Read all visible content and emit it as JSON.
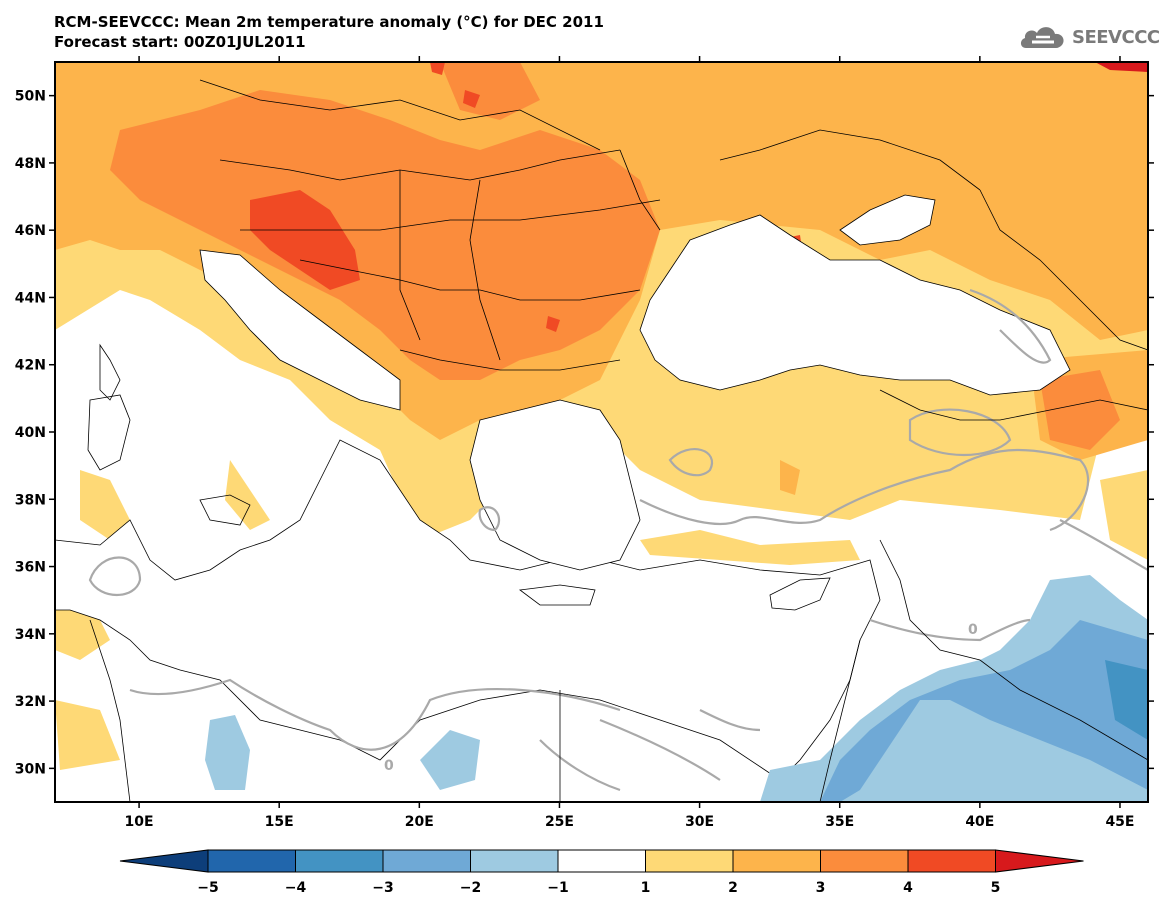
{
  "title": {
    "line1": "RCM-SEEVCCC: Mean 2m temperature anomaly (°C) for DEC 2011",
    "line2": "Forecast start: 00Z01JUL2011"
  },
  "logo": {
    "text": "SEEVCCC",
    "icon": "cloud-logo-icon",
    "color": "#7a7a7a"
  },
  "map": {
    "lat_labels": [
      "50N",
      "48N",
      "46N",
      "44N",
      "42N",
      "40N",
      "38N",
      "36N",
      "34N",
      "32N",
      "30N"
    ],
    "lat_values": [
      50,
      48,
      46,
      44,
      42,
      40,
      38,
      36,
      34,
      32,
      30
    ],
    "lon_labels": [
      "10E",
      "15E",
      "20E",
      "25E",
      "30E",
      "35E",
      "40E",
      "45E"
    ],
    "lon_values": [
      10,
      15,
      20,
      25,
      30,
      35,
      40,
      45
    ],
    "contour_zero_label": "0",
    "colors": {
      "neg5": "#0d3e7a",
      "neg4": "#2166ac",
      "neg3": "#4393c3",
      "neg2": "#6fa9d6",
      "neg1": "#9ecae1",
      "zero": "#ffffff",
      "pos1": "#fed976",
      "pos2": "#fdb44b",
      "pos3": "#fb8c3c",
      "pos4": "#f04a24",
      "pos5": "#d7191c",
      "contour": "#a9a9a9"
    }
  },
  "colorbar": {
    "ticks": [
      "−5",
      "−4",
      "−3",
      "−2",
      "−1",
      "1",
      "2",
      "3",
      "4",
      "5"
    ],
    "colors": [
      "#2166ac",
      "#4393c3",
      "#6fa9d6",
      "#9ecae1",
      "#ffffff",
      "#fed976",
      "#fdb44b",
      "#fb8c3c",
      "#f04a24"
    ],
    "low_arrow_color": "#0d3e7a",
    "high_arrow_color": "#d7191c"
  }
}
